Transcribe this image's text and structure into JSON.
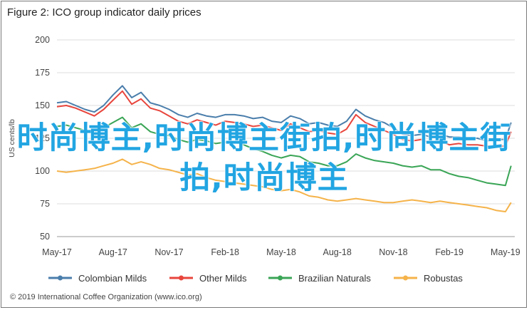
{
  "title": "Figure 2: ICO group indicator daily prices",
  "credit": "© 2019 International Coffee Organization (www.ico.org)",
  "watermark_text": "时尚博主,时尚博主街拍,时尚博主街拍,时尚博主",
  "colors": {
    "colombian": "#4a7eab",
    "other": "#e8453c",
    "brazilian": "#3aa556",
    "robustas": "#f5b34a",
    "grid": "#dcdcdc"
  },
  "chart_data": {
    "type": "line",
    "title": "Figure 2: ICO group indicator daily prices",
    "xlabel": "",
    "ylabel": "US cents/lb",
    "ylim": [
      50,
      200
    ],
    "yticks": [
      50,
      75,
      100,
      125,
      150,
      175,
      200
    ],
    "x_tick_labels": [
      "May-17",
      "Aug-17",
      "Nov-17",
      "Feb-18",
      "May-18",
      "Aug-18",
      "Nov-18",
      "Feb-19",
      "May-19"
    ],
    "xlim": [
      0,
      24.5
    ],
    "grid": true,
    "legend": "bottom",
    "series": [
      {
        "name": "Colombian Milds",
        "x": [
          0,
          0.5,
          1,
          1.5,
          2,
          2.5,
          3,
          3.5,
          4,
          4.5,
          5,
          5.5,
          6,
          6.5,
          7,
          7.5,
          8,
          8.5,
          9,
          9.5,
          10,
          10.5,
          11,
          11.5,
          12,
          12.5,
          13,
          13.5,
          14,
          14.5,
          15,
          15.5,
          16,
          16.5,
          17,
          17.5,
          18,
          18.5,
          19,
          19.5,
          20,
          20.5,
          21,
          21.5,
          22,
          22.5,
          23,
          23.5,
          24,
          24.3
        ],
        "values": [
          152,
          153,
          150,
          147,
          145,
          150,
          158,
          165,
          156,
          160,
          152,
          150,
          147,
          143,
          141,
          144,
          142,
          141,
          143,
          143,
          142,
          140,
          141,
          138,
          137,
          142,
          140,
          136,
          137,
          135,
          134,
          138,
          147,
          142,
          139,
          137,
          133,
          128,
          127,
          128,
          126,
          128,
          126,
          126,
          125,
          125,
          123,
          124,
          124,
          137
        ]
      },
      {
        "name": "Other Milds",
        "x": [
          0,
          0.5,
          1,
          1.5,
          2,
          2.5,
          3,
          3.5,
          4,
          4.5,
          5,
          5.5,
          6,
          6.5,
          7,
          7.5,
          8,
          8.5,
          9,
          9.5,
          10,
          10.5,
          11,
          11.5,
          12,
          12.5,
          13,
          13.5,
          14,
          14.5,
          15,
          15.5,
          16,
          16.5,
          17,
          17.5,
          18,
          18.5,
          19,
          19.5,
          20,
          20.5,
          21,
          21.5,
          22,
          22.5,
          23,
          23.5,
          24,
          24.3
        ],
        "values": [
          149,
          150,
          148,
          145,
          142,
          147,
          154,
          161,
          151,
          155,
          148,
          146,
          142,
          138,
          136,
          139,
          137,
          135,
          138,
          137,
          136,
          134,
          135,
          133,
          131,
          136,
          133,
          130,
          131,
          129,
          128,
          132,
          143,
          137,
          134,
          131,
          128,
          124,
          123,
          124,
          121,
          123,
          120,
          121,
          120,
          120,
          119,
          119,
          119,
          130
        ]
      },
      {
        "name": "Brazilian Naturals",
        "x": [
          0,
          0.5,
          1,
          1.5,
          2,
          2.5,
          3,
          3.5,
          4,
          4.5,
          5,
          5.5,
          6,
          6.5,
          7,
          7.5,
          8,
          8.5,
          9,
          9.5,
          10,
          10.5,
          11,
          11.5,
          12,
          12.5,
          13,
          13.5,
          14,
          14.5,
          15,
          15.5,
          16,
          16.5,
          17,
          17.5,
          18,
          18.5,
          19,
          19.5,
          20,
          20.5,
          21,
          21.5,
          22,
          22.5,
          23,
          23.5,
          24,
          24.3
        ],
        "values": [
          134,
          135,
          133,
          131,
          129,
          133,
          137,
          141,
          133,
          136,
          130,
          128,
          127,
          124,
          122,
          124,
          123,
          121,
          122,
          122,
          120,
          117,
          115,
          112,
          110,
          112,
          111,
          107,
          106,
          104,
          104,
          107,
          113,
          110,
          108,
          107,
          106,
          104,
          103,
          104,
          101,
          101,
          98,
          96,
          95,
          93,
          91,
          90,
          89,
          104
        ]
      },
      {
        "name": "Robustas",
        "x": [
          0,
          0.5,
          1,
          1.5,
          2,
          2.5,
          3,
          3.5,
          4,
          4.5,
          5,
          5.5,
          6,
          6.5,
          7,
          7.5,
          8,
          8.5,
          9,
          9.5,
          10,
          10.5,
          11,
          11.5,
          12,
          12.5,
          13,
          13.5,
          14,
          14.5,
          15,
          15.5,
          16,
          16.5,
          17,
          17.5,
          18,
          18.5,
          19,
          19.5,
          20,
          20.5,
          21,
          21.5,
          22,
          22.5,
          23,
          23.5,
          24,
          24.3
        ],
        "values": [
          100,
          99,
          100,
          101,
          102,
          104,
          106,
          109,
          105,
          107,
          105,
          102,
          101,
          99,
          97,
          98,
          95,
          93,
          92,
          91,
          90,
          89,
          88,
          86,
          85,
          86,
          84,
          81,
          80,
          78,
          77,
          78,
          79,
          78,
          77,
          76,
          76,
          77,
          78,
          77,
          76,
          77,
          76,
          75,
          74,
          73,
          72,
          70,
          69,
          76
        ]
      }
    ]
  }
}
